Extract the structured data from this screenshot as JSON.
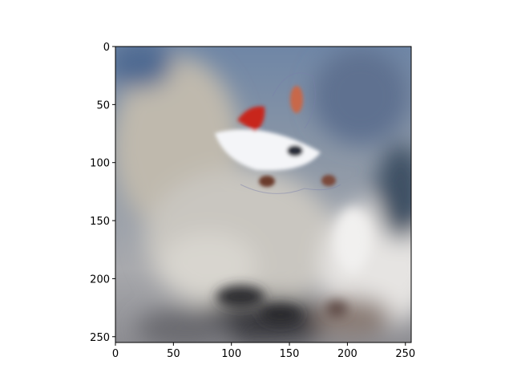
{
  "chart_data": {
    "type": "heatmap",
    "description_of_image": "generated image displayed with imshow",
    "xlim": [
      0,
      255
    ],
    "ylim": [
      255,
      0
    ],
    "x_ticks": [
      0,
      50,
      100,
      150,
      200,
      250
    ],
    "y_ticks": [
      0,
      50,
      100,
      150,
      200,
      250
    ],
    "x_tick_labels": [
      "0",
      "50",
      "100",
      "150",
      "200",
      "250"
    ],
    "y_tick_labels": [
      "0",
      "50",
      "100",
      "150",
      "200",
      "250"
    ],
    "title": "",
    "xlabel": "",
    "ylabel": ""
  }
}
